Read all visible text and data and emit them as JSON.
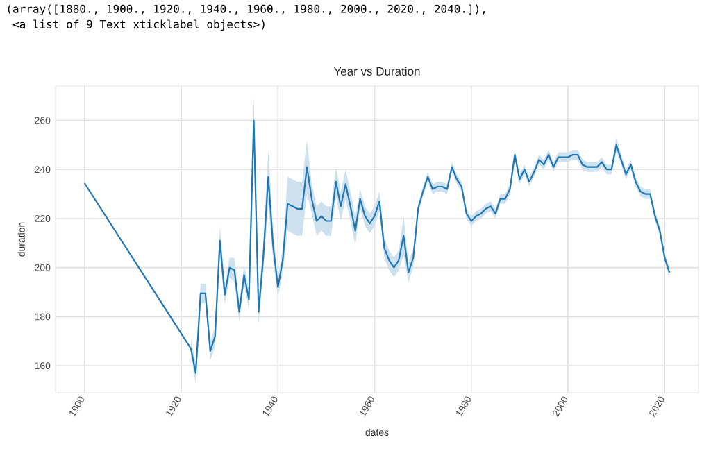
{
  "chart_data": {
    "type": "line",
    "title": "Year vs Duration",
    "xlabel": "dates",
    "ylabel": "duration",
    "annotations": [
      "(array([1880., 1900., 1920., 1940., 1960., 1980., 2000., 2020., 2040.]),",
      " <a list of 9 Text xticklabel objects>)"
    ],
    "xlim": [
      1894,
      2027
    ],
    "ylim": [
      149,
      274
    ],
    "xticks": [
      1900,
      1920,
      1940,
      1960,
      1980,
      2000,
      2020
    ],
    "yticks": [
      160,
      180,
      200,
      220,
      240,
      260
    ],
    "grid": true,
    "line_style": "solid",
    "marker": "none",
    "series": [
      {
        "color": "#1f77b4",
        "x": [
          1900,
          1922,
          1923,
          1924,
          1925,
          1926,
          1927,
          1928,
          1929,
          1930,
          1931,
          1932,
          1933,
          1934,
          1935,
          1936,
          1937,
          1938,
          1939,
          1940,
          1941,
          1942,
          1943,
          1944,
          1945,
          1946,
          1947,
          1948,
          1949,
          1950,
          1951,
          1952,
          1953,
          1954,
          1955,
          1956,
          1957,
          1958,
          1959,
          1960,
          1961,
          1962,
          1963,
          1964,
          1965,
          1966,
          1967,
          1968,
          1969,
          1970,
          1971,
          1972,
          1973,
          1974,
          1975,
          1976,
          1977,
          1978,
          1979,
          1980,
          1981,
          1982,
          1983,
          1984,
          1985,
          1986,
          1987,
          1988,
          1989,
          1990,
          1991,
          1992,
          1993,
          1994,
          1995,
          1996,
          1997,
          1998,
          1999,
          2000,
          2001,
          2002,
          2003,
          2004,
          2005,
          2006,
          2007,
          2008,
          2009,
          2010,
          2011,
          2012,
          2013,
          2014,
          2015,
          2016,
          2017,
          2018,
          2019,
          2020,
          2021
        ],
        "values": [
          234.4,
          167,
          157,
          189.5,
          189.5,
          166,
          172,
          211,
          189,
          200,
          199,
          182,
          197,
          187,
          260,
          182,
          205,
          237,
          209,
          192,
          203,
          226,
          225,
          224,
          224,
          241,
          228,
          219,
          221,
          219,
          219,
          235,
          225,
          234,
          225,
          215,
          228,
          221,
          218,
          221,
          227,
          208,
          203,
          200,
          203,
          213,
          198,
          204,
          224,
          231,
          237,
          232,
          233,
          233,
          232,
          241,
          236,
          233,
          222,
          219,
          221,
          222,
          224,
          225,
          222,
          228,
          228,
          232,
          246,
          236,
          240,
          235,
          239,
          244,
          242,
          246,
          241,
          245,
          245,
          245,
          246,
          246,
          242,
          241,
          241,
          241,
          243,
          240,
          240,
          250,
          244,
          238,
          242,
          235,
          231,
          230,
          230,
          221,
          215,
          204,
          198
        ],
        "lower": [
          null,
          163,
          153,
          185.5,
          185.5,
          162,
          168,
          205,
          185,
          196,
          194,
          178,
          193,
          183,
          250,
          177,
          199,
          226,
          203,
          188,
          198,
          215,
          214,
          213,
          213,
          230,
          222,
          213,
          215,
          213,
          213,
          229,
          219,
          228,
          219,
          209,
          224,
          217,
          214,
          217,
          223,
          204,
          199,
          196,
          199,
          205,
          194,
          200,
          222,
          229,
          235,
          230,
          231,
          231,
          230,
          239,
          234,
          231,
          220,
          217,
          219,
          220,
          222,
          223,
          220,
          226,
          226,
          230,
          244,
          234,
          238,
          233,
          237,
          242,
          240,
          244,
          239,
          243,
          243,
          243,
          244,
          244,
          240,
          239,
          239,
          239,
          241,
          238,
          238,
          247,
          242,
          236,
          240,
          233,
          229,
          228,
          228,
          219,
          213,
          202,
          196
        ],
        "upper": [
          null,
          171,
          161,
          193.5,
          193.5,
          170,
          176,
          217,
          193,
          204,
          204,
          186,
          201,
          191,
          270,
          187,
          211,
          248,
          215,
          196,
          208,
          237,
          236,
          235,
          235,
          252,
          234,
          225,
          227,
          225,
          225,
          241,
          231,
          240,
          231,
          221,
          232,
          225,
          222,
          225,
          231,
          212,
          207,
          204,
          207,
          221,
          202,
          208,
          226,
          233,
          239,
          234,
          235,
          235,
          234,
          243,
          238,
          235,
          224,
          221,
          223,
          224,
          226,
          227,
          224,
          230,
          230,
          234,
          248,
          238,
          242,
          237,
          241,
          246,
          244,
          248,
          243,
          247,
          247,
          247,
          248,
          248,
          244,
          243,
          243,
          243,
          245,
          242,
          242,
          253,
          246,
          240,
          244,
          237,
          233,
          232,
          232,
          223,
          217,
          206,
          200
        ]
      }
    ]
  }
}
